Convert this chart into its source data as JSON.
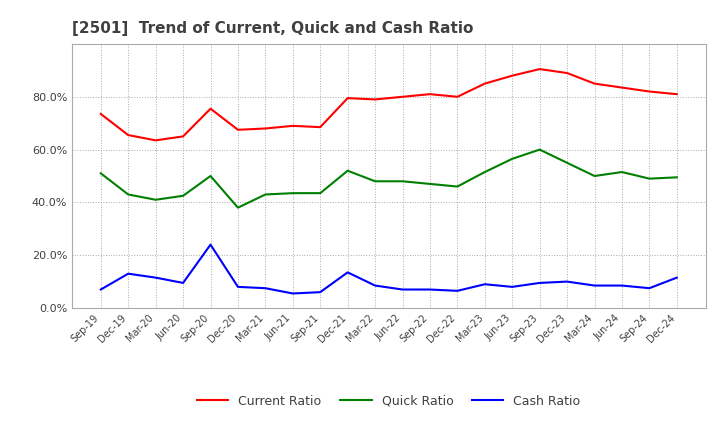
{
  "title": "[2501]  Trend of Current, Quick and Cash Ratio",
  "title_color": "#404040",
  "background_color": "#ffffff",
  "ylim": [
    0,
    100
  ],
  "yticks": [
    0,
    20,
    40,
    60,
    80
  ],
  "x_labels": [
    "Sep-19",
    "Dec-19",
    "Mar-20",
    "Jun-20",
    "Sep-20",
    "Dec-20",
    "Mar-21",
    "Jun-21",
    "Sep-21",
    "Dec-21",
    "Mar-22",
    "Jun-22",
    "Sep-22",
    "Dec-22",
    "Mar-23",
    "Jun-23",
    "Sep-23",
    "Dec-23",
    "Mar-24",
    "Jun-24",
    "Sep-24",
    "Dec-24"
  ],
  "current_ratio": [
    73.5,
    65.5,
    63.5,
    65.0,
    75.5,
    67.5,
    68.0,
    69.0,
    68.5,
    79.5,
    79.0,
    80.0,
    81.0,
    80.0,
    85.0,
    88.0,
    90.5,
    89.0,
    85.0,
    83.5,
    82.0,
    81.0
  ],
  "quick_ratio": [
    51.0,
    43.0,
    41.0,
    42.5,
    50.0,
    38.0,
    43.0,
    43.5,
    43.5,
    52.0,
    48.0,
    48.0,
    47.0,
    46.0,
    51.5,
    56.5,
    60.0,
    55.0,
    50.0,
    51.5,
    49.0,
    49.5
  ],
  "cash_ratio": [
    7.0,
    13.0,
    11.5,
    9.5,
    24.0,
    8.0,
    7.5,
    5.5,
    6.0,
    13.5,
    8.5,
    7.0,
    7.0,
    6.5,
    9.0,
    8.0,
    9.5,
    10.0,
    8.5,
    8.5,
    7.5,
    11.5
  ],
  "current_color": "#ff0000",
  "quick_color": "#008000",
  "cash_color": "#0000ff",
  "line_width": 1.5,
  "legend_labels": [
    "Current Ratio",
    "Quick Ratio",
    "Cash Ratio"
  ]
}
